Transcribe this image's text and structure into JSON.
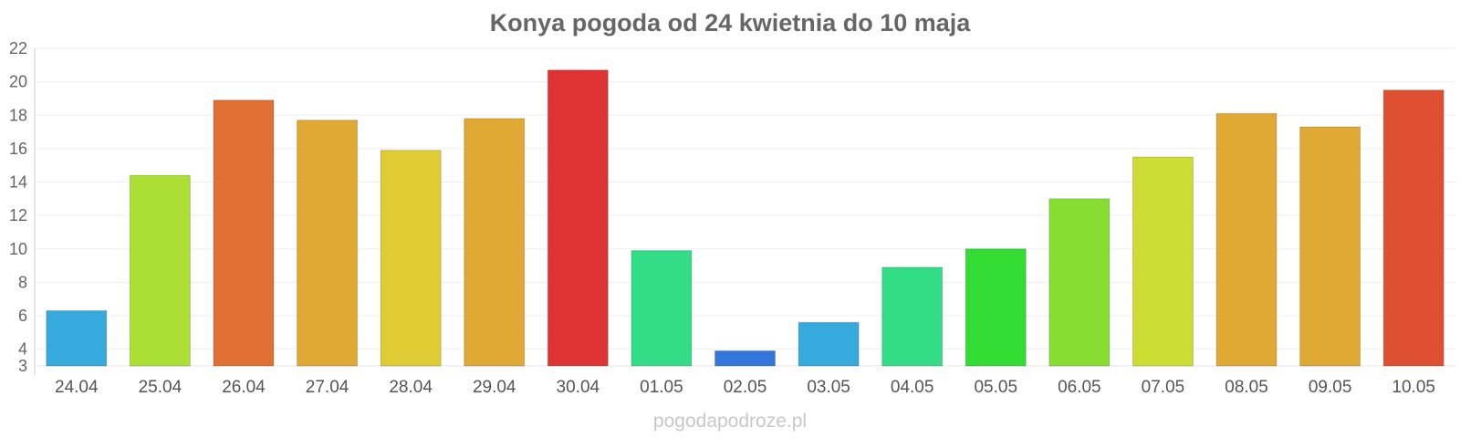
{
  "chart_data": {
    "type": "bar",
    "title": "Konya pogoda od 24 kwietnia do 10 maja",
    "xlabel": "",
    "ylabel": "",
    "categories": [
      "24.04",
      "25.04",
      "26.04",
      "27.04",
      "28.04",
      "29.04",
      "30.04",
      "01.05",
      "02.05",
      "03.05",
      "04.05",
      "05.05",
      "06.05",
      "07.05",
      "08.05",
      "09.05",
      "10.05"
    ],
    "values": [
      6.3,
      14.4,
      18.9,
      17.7,
      15.9,
      17.8,
      20.7,
      9.9,
      3.9,
      5.6,
      8.9,
      10.0,
      13.0,
      15.5,
      18.1,
      17.3,
      19.5
    ],
    "colors": [
      "#36a9dd",
      "#aadf33",
      "#df6f33",
      "#dfa933",
      "#dfcb33",
      "#dfa933",
      "#df3333",
      "#33dd88",
      "#3377dd",
      "#36a9dd",
      "#33dd88",
      "#33dd33",
      "#88dd33",
      "#ccdd33",
      "#dfa933",
      "#dfa933",
      "#df5033"
    ],
    "ylim": [
      3,
      22
    ],
    "yticks": [
      3,
      4,
      6,
      8,
      10,
      12,
      14,
      16,
      18,
      20,
      22
    ],
    "grid": true,
    "legend": "none"
  },
  "watermark": "pogodapodroze.pl"
}
